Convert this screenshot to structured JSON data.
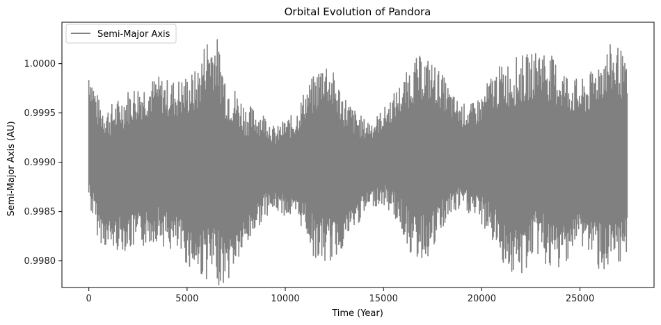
{
  "chart_data": {
    "type": "line",
    "title": "Orbital Evolution of Pandora",
    "xlabel": "Time (Year)",
    "ylabel": "Semi-Major Axis (AU)",
    "xlim": [
      -1370,
      28770
    ],
    "ylim": [
      0.99773,
      1.00042
    ],
    "xticks": [
      0,
      5000,
      10000,
      15000,
      20000,
      25000
    ],
    "xtick_labels": [
      "0",
      "5000",
      "10000",
      "15000",
      "20000",
      "25000"
    ],
    "yticks": [
      0.998,
      0.9985,
      0.999,
      0.9995,
      1.0
    ],
    "ytick_labels": [
      "0.9980",
      "0.9985",
      "0.9990",
      "0.9995",
      "1.0000"
    ],
    "grid": false,
    "legend": {
      "position": "top-left",
      "entries": [
        "Semi-Major Axis"
      ]
    },
    "series": [
      {
        "name": "Semi-Major Axis",
        "color": "#808080",
        "x": [
          0,
          500,
          1000,
          1500,
          2000,
          2500,
          3000,
          3500,
          4000,
          4500,
          5000,
          5500,
          6000,
          6500,
          7000,
          7500,
          8000,
          8500,
          9000,
          9500,
          10000,
          10500,
          11000,
          11500,
          12000,
          12500,
          13000,
          13500,
          14000,
          14500,
          15000,
          15500,
          16000,
          16500,
          17000,
          17500,
          18000,
          18500,
          19000,
          19500,
          20000,
          20500,
          21000,
          21500,
          22000,
          22500,
          23000,
          23500,
          24000,
          24500,
          25000,
          25500,
          26000,
          26500,
          27000,
          27400
        ],
        "upper": [
          1.0,
          0.99965,
          0.99958,
          0.99965,
          0.99975,
          0.9998,
          0.99983,
          0.99988,
          0.99985,
          0.99985,
          0.9999,
          0.99995,
          1.0003,
          1.0003,
          0.9999,
          0.99975,
          0.9996,
          0.99955,
          0.9995,
          0.99935,
          0.99945,
          0.9995,
          0.99975,
          0.9999,
          1.0001,
          0.9999,
          0.9997,
          0.99955,
          0.99945,
          0.99945,
          0.99955,
          0.9997,
          0.99985,
          1.00005,
          1.0001,
          1.00003,
          0.9999,
          0.9997,
          0.9996,
          0.9996,
          0.9997,
          0.9999,
          1.0,
          1.00005,
          1.0001,
          1.0001,
          1.0002,
          1.0001,
          1.0,
          0.9999,
          0.99983,
          0.9999,
          1.0001,
          1.0002,
          1.0002,
          0.99995
        ],
        "lower": [
          0.99855,
          0.9982,
          0.9981,
          0.9981,
          0.9981,
          0.9981,
          0.99815,
          0.9982,
          0.9981,
          0.99805,
          0.99795,
          0.99785,
          0.9978,
          0.99775,
          0.99775,
          0.99795,
          0.9981,
          0.9983,
          0.99845,
          0.9985,
          0.99845,
          0.9984,
          0.9983,
          0.998,
          0.99795,
          0.998,
          0.99815,
          0.9983,
          0.99845,
          0.99855,
          0.99855,
          0.99845,
          0.99825,
          0.998,
          0.998,
          0.99805,
          0.9983,
          0.99845,
          0.9985,
          0.99845,
          0.99835,
          0.9982,
          0.998,
          0.99785,
          0.9978,
          0.998,
          0.99805,
          0.99785,
          0.9979,
          0.99805,
          0.99815,
          0.99805,
          0.9979,
          0.99785,
          0.99785,
          0.9981
        ]
      }
    ]
  }
}
